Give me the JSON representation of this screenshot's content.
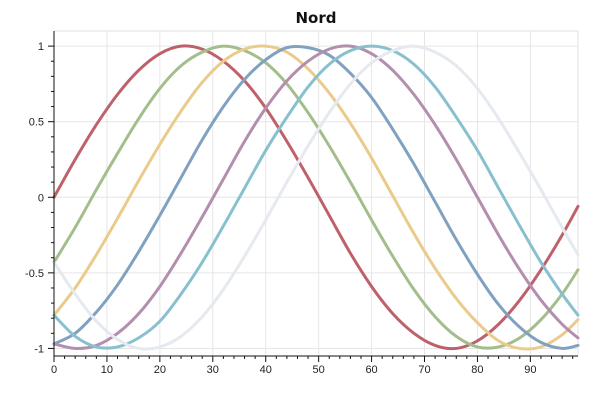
{
  "chart_data": {
    "type": "line",
    "title": "Nord",
    "xlabel": "",
    "ylabel": "",
    "xlim": [
      0,
      99
    ],
    "ylim": [
      -1.05,
      1.1
    ],
    "x_ticks": [
      0,
      10,
      20,
      30,
      40,
      50,
      60,
      70,
      80,
      90
    ],
    "y_ticks": [
      -1,
      -0.5,
      0,
      0.5,
      1
    ],
    "y_tick_labels": [
      "-1",
      "-0.5",
      "0",
      "0.5",
      "1"
    ],
    "grid": true,
    "x": [
      0,
      4,
      8,
      12,
      16,
      20,
      24,
      28,
      32,
      36,
      40,
      44,
      48,
      52,
      56,
      60,
      64,
      68,
      72,
      76,
      80,
      84,
      88,
      92,
      96,
      99
    ],
    "series": [
      {
        "color": "#bf616a",
        "values": [
          0,
          0.25,
          0.48,
          0.68,
          0.84,
          0.95,
          1.0,
          0.98,
          0.9,
          0.77,
          0.59,
          0.37,
          0.13,
          -0.12,
          -0.37,
          -0.59,
          -0.77,
          -0.9,
          -0.98,
          -1.0,
          -0.95,
          -0.84,
          -0.68,
          -0.48,
          -0.25,
          -0.06
        ]
      },
      {
        "color": "#a3be8c",
        "values": [
          -0.43,
          -0.2,
          0.05,
          0.29,
          0.52,
          0.72,
          0.87,
          0.96,
          1.0,
          0.97,
          0.89,
          0.75,
          0.56,
          0.34,
          0.1,
          -0.15,
          -0.39,
          -0.61,
          -0.79,
          -0.92,
          -0.99,
          -0.99,
          -0.93,
          -0.81,
          -0.64,
          -0.48
        ]
      },
      {
        "color": "#ebcb8b",
        "values": [
          -0.78,
          -0.6,
          -0.38,
          -0.14,
          0.11,
          0.35,
          0.57,
          0.76,
          0.9,
          0.98,
          1.0,
          0.96,
          0.85,
          0.69,
          0.49,
          0.26,
          0.01,
          -0.24,
          -0.47,
          -0.67,
          -0.83,
          -0.95,
          -1.0,
          -0.99,
          -0.91,
          -0.81
        ]
      },
      {
        "color": "#81a1c1",
        "values": [
          -0.97,
          -0.9,
          -0.76,
          -0.58,
          -0.36,
          -0.12,
          0.13,
          0.38,
          0.6,
          0.78,
          0.91,
          0.99,
          0.99,
          0.94,
          0.82,
          0.66,
          0.45,
          0.22,
          -0.03,
          -0.28,
          -0.51,
          -0.71,
          -0.86,
          -0.96,
          -1.0,
          -0.98
        ]
      },
      {
        "color": "#b48ead",
        "values": [
          -0.97,
          -1.0,
          -0.98,
          -0.9,
          -0.77,
          -0.59,
          -0.37,
          -0.13,
          0.12,
          0.37,
          0.59,
          0.77,
          0.9,
          0.98,
          1.0,
          0.95,
          0.84,
          0.68,
          0.48,
          0.25,
          0.0,
          -0.25,
          -0.48,
          -0.68,
          -0.84,
          -0.93
        ]
      },
      {
        "color": "#88c0d0",
        "values": [
          -0.78,
          -0.92,
          -0.99,
          -0.99,
          -0.93,
          -0.82,
          -0.64,
          -0.43,
          -0.19,
          0.06,
          0.31,
          0.53,
          0.73,
          0.88,
          0.97,
          1.0,
          0.97,
          0.88,
          0.73,
          0.53,
          0.31,
          0.06,
          -0.19,
          -0.43,
          -0.64,
          -0.78
        ]
      },
      {
        "color": "#e5e9f0",
        "values": [
          -0.43,
          -0.64,
          -0.82,
          -0.94,
          -1.0,
          -0.99,
          -0.92,
          -0.79,
          -0.61,
          -0.39,
          -0.15,
          0.1,
          0.34,
          0.56,
          0.75,
          0.89,
          0.97,
          1.0,
          0.96,
          0.87,
          0.72,
          0.52,
          0.29,
          0.05,
          -0.2,
          -0.38
        ]
      }
    ]
  }
}
